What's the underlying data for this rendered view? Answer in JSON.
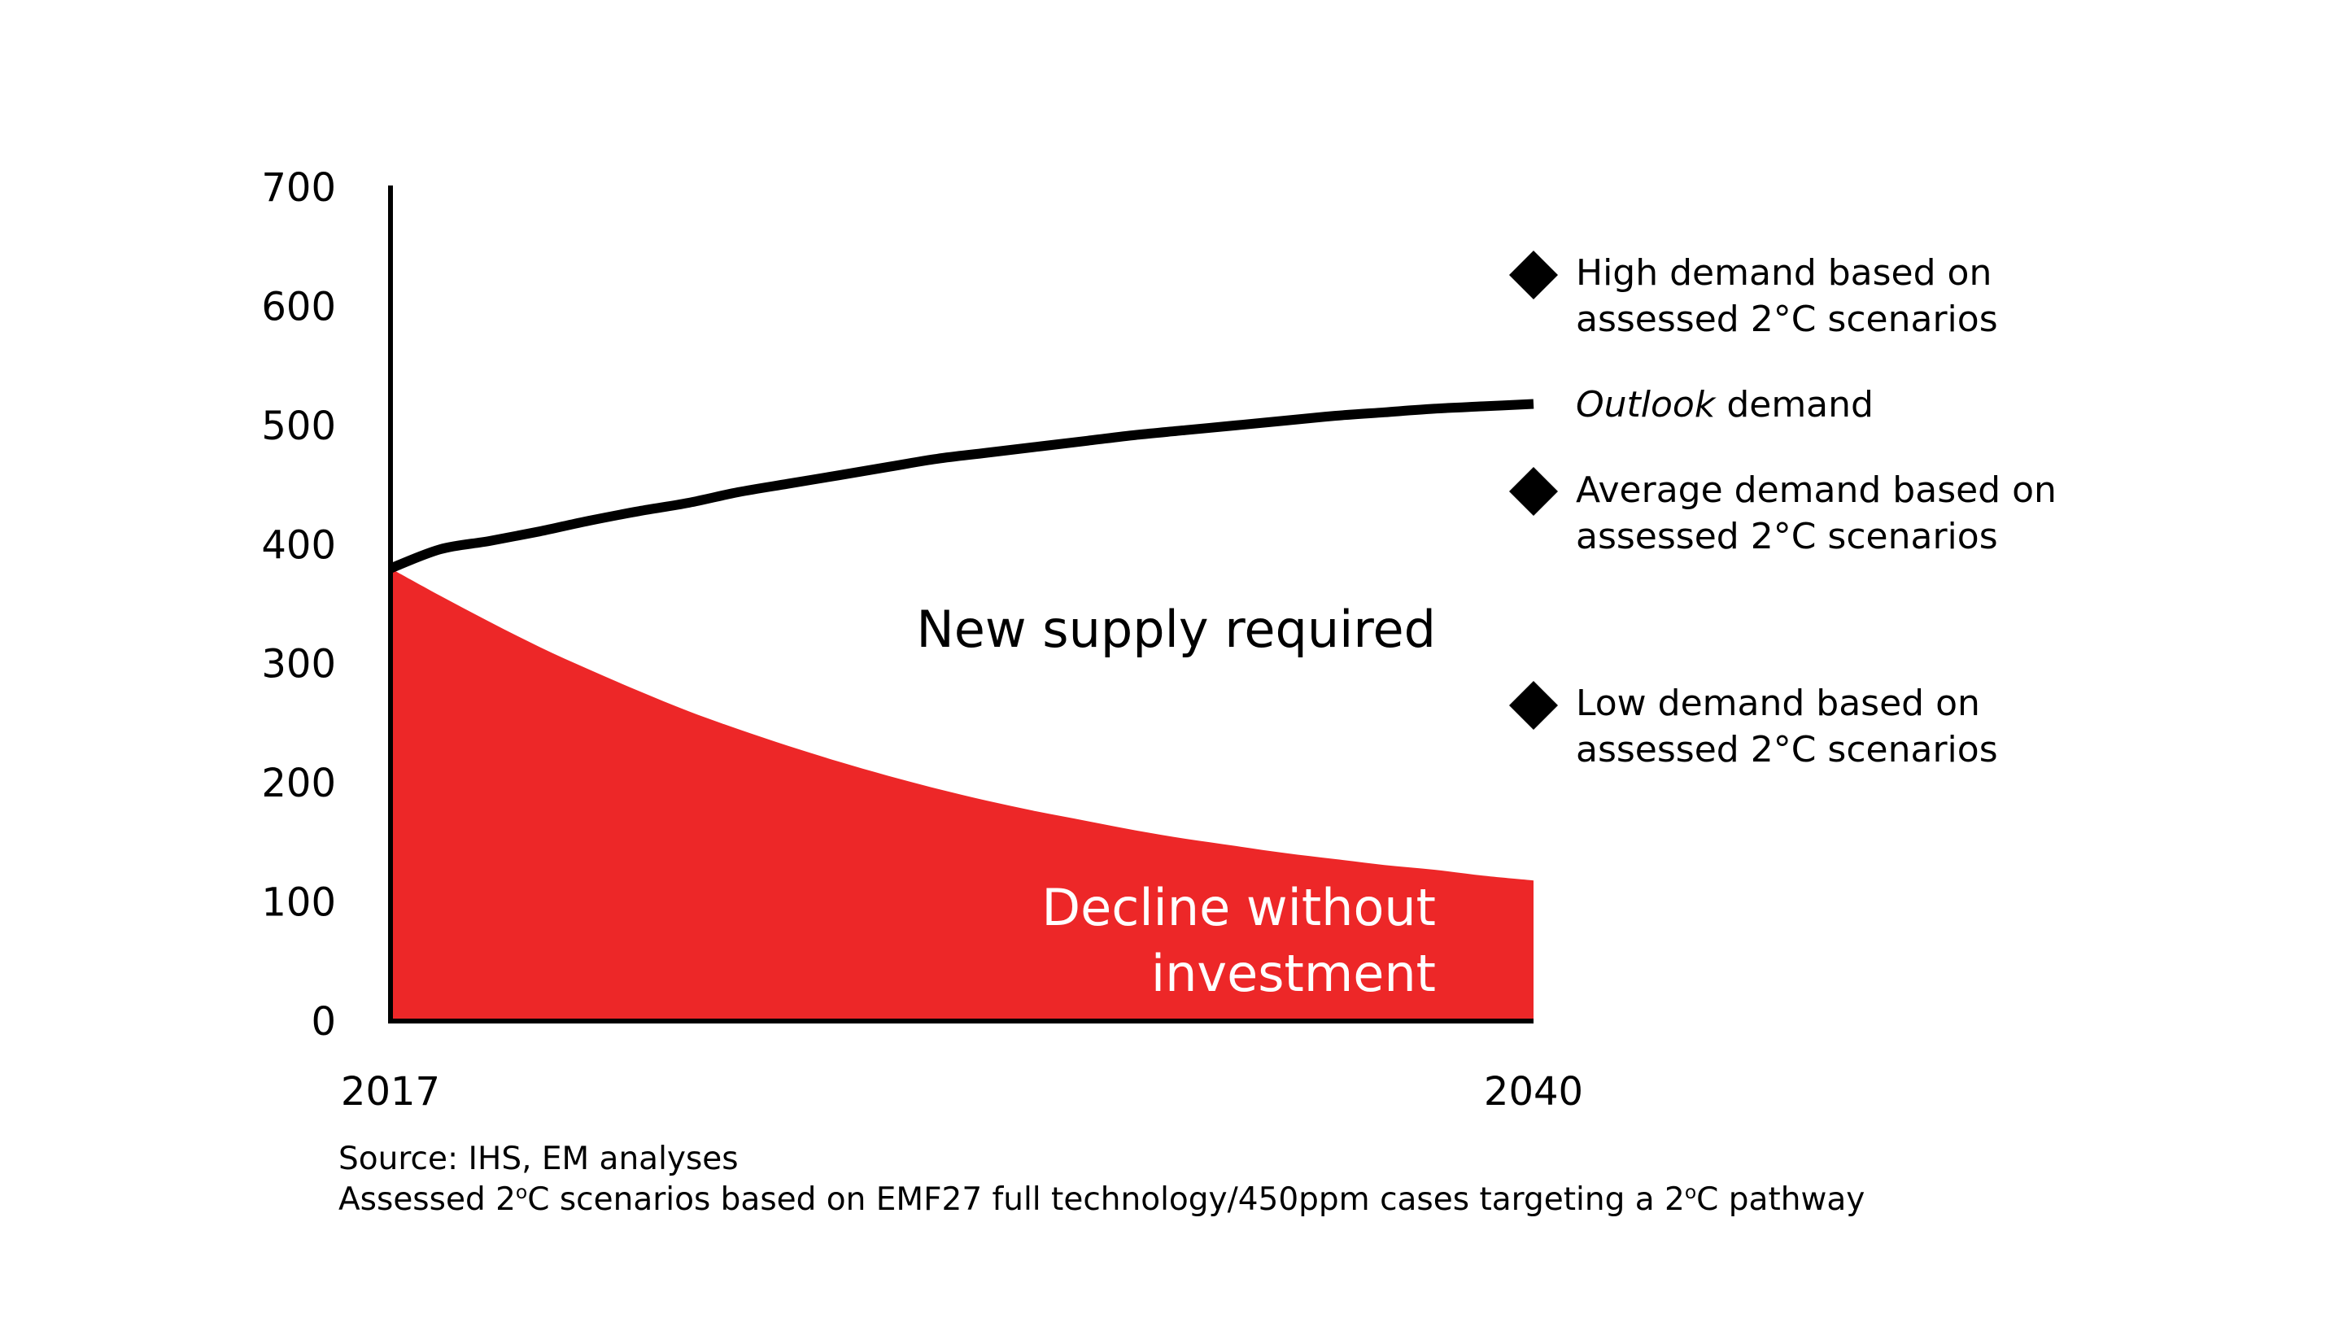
{
  "chart_data": {
    "type": "area",
    "x_range": [
      2017,
      2040
    ],
    "ylim": [
      0,
      700
    ],
    "y_ticks": [
      "0",
      "100",
      "200",
      "300",
      "400",
      "500",
      "600",
      "700"
    ],
    "x_ticks": [
      "2017",
      "2040"
    ],
    "grid": false,
    "series": [
      {
        "name": "Outlook demand",
        "kind": "line",
        "color": "#000000",
        "x": [
          2017,
          2018,
          2019,
          2020,
          2021,
          2022,
          2023,
          2024,
          2025,
          2026,
          2027,
          2028,
          2029,
          2030,
          2031,
          2032,
          2033,
          2034,
          2035,
          2036,
          2037,
          2038,
          2039,
          2040
        ],
        "values": [
          380,
          396,
          403,
          411,
          420,
          428,
          435,
          444,
          451,
          458,
          465,
          472,
          477,
          482,
          487,
          492,
          496,
          500,
          504,
          508,
          511,
          514,
          516,
          518
        ]
      },
      {
        "name": "Decline without investment",
        "kind": "area",
        "color": "#ed2728",
        "x": [
          2017,
          2018,
          2019,
          2020,
          2021,
          2022,
          2023,
          2024,
          2025,
          2026,
          2027,
          2028,
          2029,
          2030,
          2031,
          2032,
          2033,
          2034,
          2035,
          2036,
          2037,
          2038,
          2039,
          2040
        ],
        "values": [
          380,
          357,
          335,
          314,
          295,
          277,
          260,
          245,
          231,
          218,
          206,
          195,
          185,
          176,
          168,
          160,
          153,
          147,
          141,
          136,
          131,
          127,
          122,
          118
        ]
      }
    ],
    "annotations": {
      "new_supply": "New supply required",
      "decline_line1": "Decline without",
      "decline_line2": "investment"
    },
    "legend": {
      "high_line1": "High demand based on",
      "high_line2": "assessed  2°C scenarios",
      "outlook_italic": "Outlook",
      "outlook_rest": " demand",
      "average_line1": "Average demand based on",
      "average_line2": "assessed 2°C scenarios",
      "low_line1": "Low demand based on",
      "low_line2": "assessed 2°C scenarios"
    },
    "marker_icon": "diamond-icon"
  },
  "notes": {
    "source": "Source: IHS, EM analyses",
    "assessed_prefix": "Assessed 2",
    "degree_sup": "o",
    "assessed_middle": "C scenarios based on EMF27 full technology/450ppm cases targeting a 2",
    "assessed_suffix": "C pathway"
  }
}
